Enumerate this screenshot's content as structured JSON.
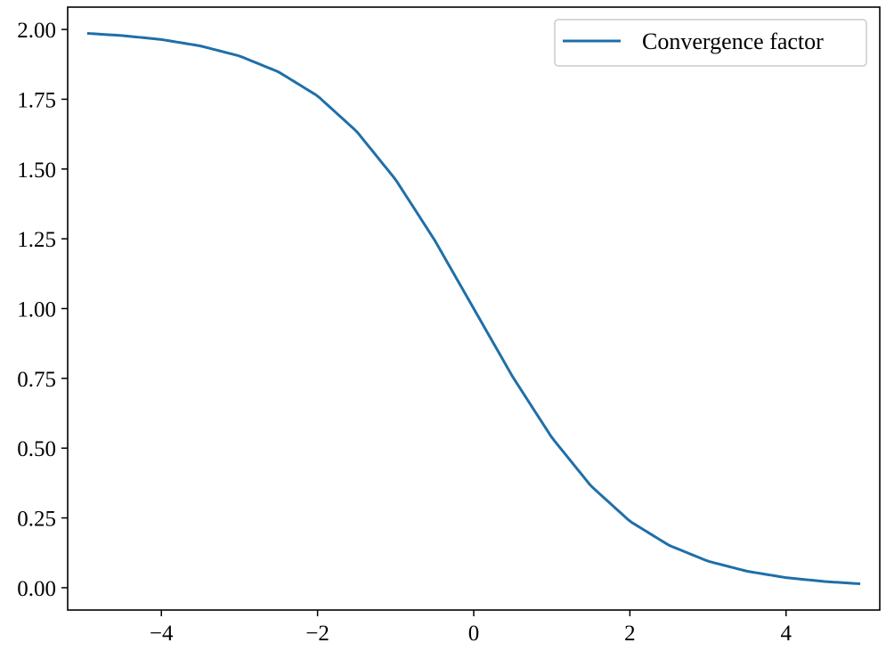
{
  "chart_data": {
    "type": "line",
    "title": "",
    "xlabel": "",
    "ylabel": "",
    "xlim": [
      -5.2,
      5.2
    ],
    "ylim": [
      -0.08,
      2.08
    ],
    "grid": false,
    "legend_position": "top-right",
    "x_ticks": [
      {
        "value": -4,
        "label": "−4"
      },
      {
        "value": -2,
        "label": "−2"
      },
      {
        "value": 0,
        "label": "0"
      },
      {
        "value": 2,
        "label": "2"
      },
      {
        "value": 4,
        "label": "4"
      }
    ],
    "y_ticks": [
      {
        "value": 0.0,
        "label": "0.00"
      },
      {
        "value": 0.25,
        "label": "0.25"
      },
      {
        "value": 0.5,
        "label": "0.50"
      },
      {
        "value": 0.75,
        "label": "0.75"
      },
      {
        "value": 1.0,
        "label": "1.00"
      },
      {
        "value": 1.25,
        "label": "1.25"
      },
      {
        "value": 1.5,
        "label": "1.50"
      },
      {
        "value": 1.75,
        "label": "1.75"
      },
      {
        "value": 2.0,
        "label": "2.00"
      }
    ],
    "series": [
      {
        "name": "Convergence factor",
        "color": "#1f6fa8",
        "x": [
          -4.95,
          -4.5,
          -4.0,
          -3.5,
          -3.0,
          -2.5,
          -2.0,
          -1.5,
          -1.0,
          -0.5,
          0.0,
          0.5,
          1.0,
          1.5,
          2.0,
          2.5,
          3.0,
          3.5,
          4.0,
          4.5,
          4.95
        ],
        "y": [
          1.986,
          1.978,
          1.964,
          1.941,
          1.905,
          1.848,
          1.762,
          1.635,
          1.462,
          1.245,
          1.0,
          0.755,
          0.538,
          0.365,
          0.238,
          0.152,
          0.095,
          0.059,
          0.036,
          0.022,
          0.014
        ]
      }
    ]
  }
}
